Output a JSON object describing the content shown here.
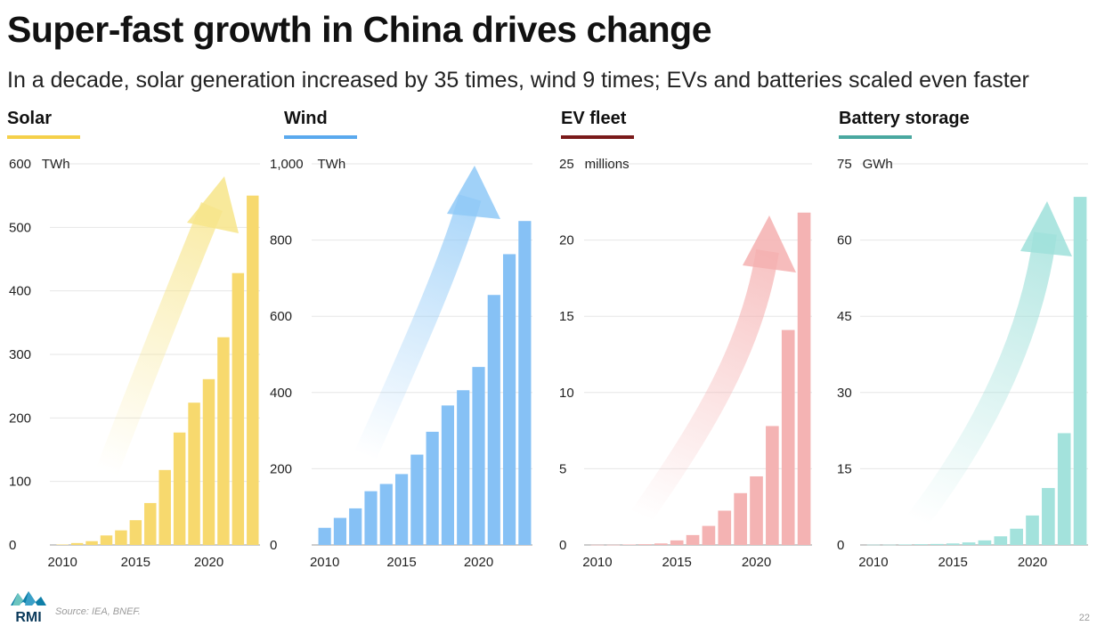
{
  "title": "Super-fast growth in China drives change",
  "subtitle": "In a decade, solar generation increased by 35 times, wind 9 times; EVs and batteries scaled even faster",
  "source": "Source: IEA, BNEF.",
  "page_number": "22",
  "logo_text": "RMI",
  "chart_data": [
    {
      "type": "bar",
      "title": "Solar",
      "unit": "TWh",
      "color": "#f7d96e",
      "accent": "#f5d04a",
      "arrow_color": "#f7e58a",
      "x": [
        2010,
        2011,
        2012,
        2013,
        2014,
        2015,
        2016,
        2017,
        2018,
        2019,
        2020,
        2021,
        2022,
        2023
      ],
      "values": [
        0.7,
        3,
        6,
        15,
        23,
        39,
        66,
        118,
        177,
        224,
        261,
        327,
        428,
        550
      ],
      "ylim": [
        0,
        600
      ],
      "yticks": [
        0,
        100,
        200,
        300,
        400,
        500,
        600
      ],
      "ytick_labels": [
        "0",
        "100",
        "200",
        "300",
        "400",
        "500",
        "600"
      ],
      "xticks": [
        2010,
        2015,
        2020
      ]
    },
    {
      "type": "bar",
      "title": "Wind",
      "unit": "TWh",
      "color": "#86c1f5",
      "accent": "#5aa9ee",
      "arrow_color": "#8fc9f7",
      "x": [
        2010,
        2011,
        2012,
        2013,
        2014,
        2015,
        2016,
        2017,
        2018,
        2019,
        2020,
        2021,
        2022,
        2023
      ],
      "values": [
        45,
        71,
        96,
        141,
        160,
        186,
        237,
        297,
        366,
        406,
        467,
        656,
        763,
        850
      ],
      "ylim": [
        0,
        1000
      ],
      "yticks": [
        0,
        200,
        400,
        600,
        800,
        1000
      ],
      "ytick_labels": [
        "0",
        "200",
        "400",
        "600",
        "800",
        "1,000"
      ],
      "xticks": [
        2010,
        2015,
        2020
      ]
    },
    {
      "type": "bar",
      "title": "EV fleet",
      "unit": "millions",
      "color": "#f4b3b3",
      "accent": "#7a1a1a",
      "arrow_color": "#f5b0b0",
      "x": [
        2010,
        2011,
        2012,
        2013,
        2014,
        2015,
        2016,
        2017,
        2018,
        2019,
        2020,
        2021,
        2022,
        2023
      ],
      "values": [
        0.01,
        0.01,
        0.03,
        0.05,
        0.1,
        0.3,
        0.65,
        1.25,
        2.25,
        3.4,
        4.5,
        7.8,
        14.1,
        21.8
      ],
      "ylim": [
        0,
        25
      ],
      "yticks": [
        0,
        5,
        10,
        15,
        20,
        25
      ],
      "ytick_labels": [
        "0",
        "5",
        "10",
        "15",
        "20",
        "25"
      ],
      "xticks": [
        2010,
        2015,
        2020
      ]
    },
    {
      "type": "bar",
      "title": "Battery storage",
      "unit": "GWh",
      "color": "#a3e2dc",
      "accent": "#4aa8a0",
      "arrow_color": "#9fe0da",
      "x": [
        2010,
        2011,
        2012,
        2013,
        2014,
        2015,
        2016,
        2017,
        2018,
        2019,
        2020,
        2021,
        2022,
        2023
      ],
      "values": [
        0.05,
        0.05,
        0.1,
        0.15,
        0.2,
        0.3,
        0.5,
        0.9,
        1.7,
        3.2,
        5.8,
        11.2,
        22,
        68.5
      ],
      "ylim": [
        0,
        75
      ],
      "yticks": [
        0,
        15,
        30,
        45,
        60,
        75
      ],
      "ytick_labels": [
        "0",
        "15",
        "30",
        "45",
        "60",
        "75"
      ],
      "xticks": [
        2010,
        2015,
        2020
      ]
    }
  ]
}
